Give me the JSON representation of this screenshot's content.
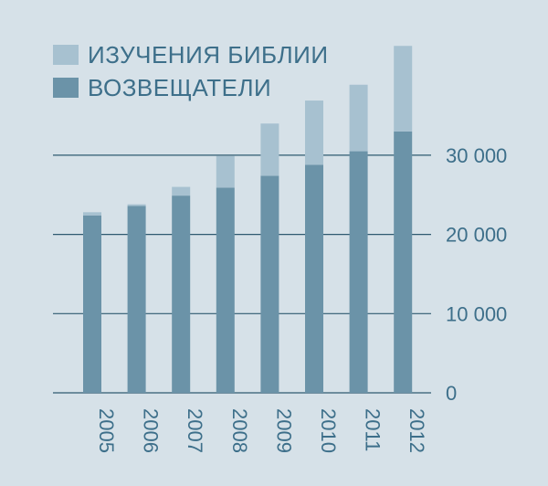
{
  "chart_data": {
    "type": "bar",
    "stacked": true,
    "categories": [
      "2005",
      "2006",
      "2007",
      "2008",
      "2009",
      "2010",
      "2011",
      "2012"
    ],
    "series": [
      {
        "name": "ВОЗВЕЩАТЕЛИ",
        "color": "#6b93a8",
        "values": [
          22400,
          23600,
          24900,
          25900,
          27400,
          28800,
          30500,
          33000
        ]
      },
      {
        "name": "ИЗУЧЕНИЯ БИБЛИИ",
        "color": "#a7c1d0",
        "values": [
          400,
          200,
          1100,
          4000,
          6600,
          8100,
          8400,
          10800
        ]
      }
    ],
    "yticks": [
      0,
      10000,
      20000,
      30000
    ],
    "ytick_labels": [
      "0",
      "10 000",
      "20 000",
      "30 000"
    ],
    "ylim": [
      0,
      44000
    ],
    "grid": true,
    "legend_position": "top-left",
    "legend_order": [
      "ИЗУЧЕНИЯ БИБЛИИ",
      "ВОЗВЕЩАТЕЛИ"
    ]
  }
}
